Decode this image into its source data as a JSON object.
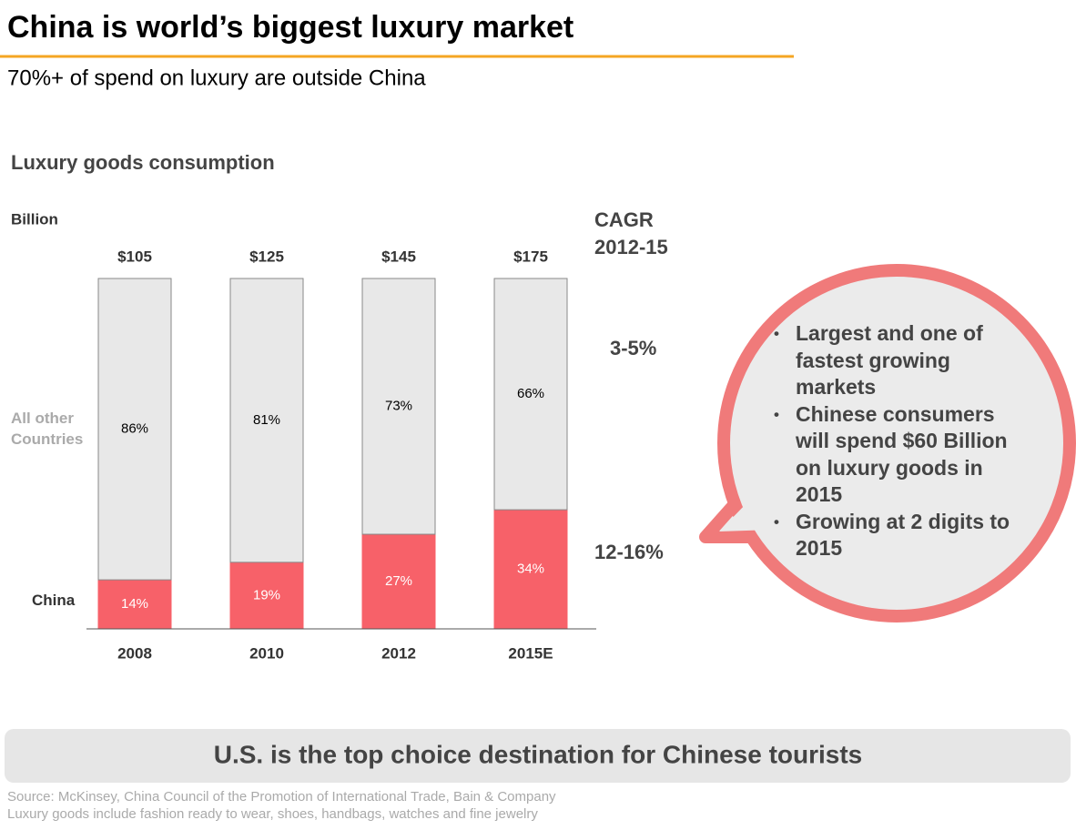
{
  "header": {
    "title": "China is world’s biggest luxury market",
    "subtitle": "70%+ of spend on luxury are outside China"
  },
  "chart_data": {
    "type": "bar",
    "stacked": true,
    "title": "Luxury goods consumption",
    "y_label": "Billion",
    "categories": [
      "2008",
      "2010",
      "2012",
      "2015E"
    ],
    "totals": {
      "values": [
        105,
        125,
        145,
        175
      ],
      "value_labels": [
        "$105",
        "$125",
        "$145",
        "$175"
      ]
    },
    "series": [
      {
        "name": "China",
        "color": "#f76169",
        "values": [
          14,
          19,
          27,
          34
        ],
        "value_labels": [
          "14%",
          "19%",
          "27%",
          "34%"
        ],
        "cagr": "12-16%"
      },
      {
        "name": "All other Countries",
        "color": "#e8e8e8",
        "values": [
          86,
          81,
          73,
          66
        ],
        "value_labels": [
          "86%",
          "81%",
          "73%",
          "66%"
        ],
        "cagr": "3-5%"
      }
    ],
    "cagr_title": [
      "CAGR",
      "2012-15"
    ]
  },
  "callout": {
    "bullets": [
      "Largest and one of fastest growing markets",
      "Chinese consumers will spend $60 Billion on luxury goods in 2015",
      "Growing at 2 digits to 2015"
    ]
  },
  "banner": "U.S. is the top choice destination for Chinese tourists",
  "footnotes": [
    "Source: McKinsey, China Council of the Promotion of International Trade, Bain & Company",
    "Luxury goods include fashion ready to wear, shoes, handbags, watches and fine jewelry"
  ]
}
